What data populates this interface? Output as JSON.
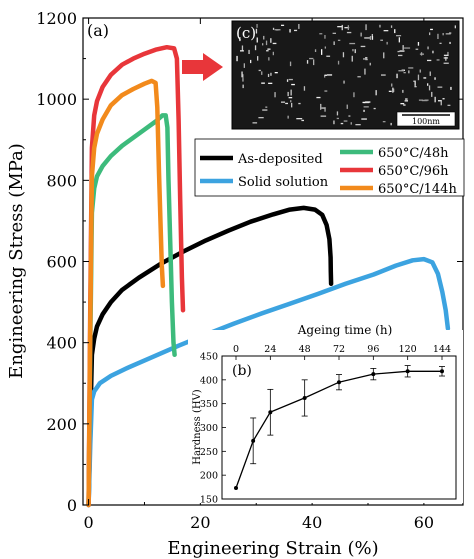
{
  "chart_data": [
    {
      "panel_label": "(a)",
      "type": "line",
      "xlabel": "Engineering Strain (%)",
      "ylabel": "Engineering Stress (MPa)",
      "xlim": [
        -1,
        67
      ],
      "ylim": [
        0,
        1200
      ],
      "xticks": [
        0,
        20,
        40,
        60
      ],
      "yticks": [
        0,
        200,
        400,
        600,
        800,
        1000,
        1200
      ],
      "grid": false,
      "legend_position": "middle-right",
      "series": [
        {
          "name": "As-deposited",
          "color": "#000000",
          "x": [
            0,
            0.3,
            0.6,
            1,
            1.5,
            2.5,
            4,
            6,
            9,
            13,
            17,
            21,
            25,
            29,
            33,
            36,
            38.5,
            40.5,
            41.8,
            42.6,
            43.1,
            43.3,
            43.35,
            43.4
          ],
          "y": [
            0,
            200,
            370,
            410,
            440,
            470,
            500,
            530,
            560,
            595,
            625,
            652,
            676,
            698,
            716,
            728,
            732,
            728,
            715,
            690,
            655,
            610,
            575,
            545
          ]
        },
        {
          "name": "Solid solution",
          "color": "#3ca3e0",
          "x": [
            0,
            0.3,
            0.6,
            1,
            2,
            4,
            7,
            11,
            16,
            21,
            26,
            31,
            36,
            41,
            46,
            51,
            55,
            58,
            60,
            61.5,
            62.5,
            63.3,
            63.9,
            64.3
          ],
          "y": [
            0,
            150,
            260,
            280,
            300,
            318,
            338,
            362,
            392,
            420,
            447,
            472,
            496,
            520,
            545,
            568,
            590,
            603,
            606,
            598,
            570,
            525,
            480,
            435
          ]
        },
        {
          "name": "650°C/48h",
          "color": "#3dbb7c",
          "x": [
            0,
            0.3,
            0.6,
            1,
            1.5,
            2.5,
            4,
            6,
            8,
            10,
            12,
            13.2,
            13.8,
            14.1,
            14.3,
            14.6,
            14.9,
            15.2,
            15.4
          ],
          "y": [
            0,
            400,
            720,
            780,
            810,
            835,
            860,
            885,
            905,
            925,
            945,
            960,
            960,
            930,
            800,
            650,
            500,
            400,
            370
          ]
        },
        {
          "name": "650°C/96h",
          "color": "#e8363a",
          "x": [
            0,
            0.3,
            0.6,
            1,
            1.5,
            2.5,
            4,
            6,
            8,
            10,
            12,
            14,
            15.3,
            15.8,
            16.1,
            16.4,
            16.7,
            16.9
          ],
          "y": [
            0,
            500,
            880,
            960,
            995,
            1030,
            1060,
            1085,
            1100,
            1112,
            1122,
            1128,
            1125,
            1100,
            950,
            750,
            560,
            480
          ]
        },
        {
          "name": "650°C/144h",
          "color": "#f28a1c",
          "x": [
            0,
            0.3,
            0.6,
            1,
            1.5,
            2.5,
            4,
            6,
            8,
            10,
            11.3,
            12,
            12.3,
            12.6,
            12.9,
            13.1,
            13.3
          ],
          "y": [
            0,
            450,
            810,
            880,
            915,
            950,
            985,
            1010,
            1025,
            1038,
            1045,
            1040,
            980,
            820,
            680,
            590,
            540
          ]
        }
      ]
    },
    {
      "panel_label": "(b)",
      "type": "line",
      "xlabel": "Ageing time (h)",
      "ylabel": "Hardness (HV)",
      "xlim": [
        0,
        144
      ],
      "ylim": [
        150,
        450
      ],
      "xticks": [
        0,
        24,
        48,
        72,
        96,
        120,
        144
      ],
      "yticks": [
        150,
        200,
        250,
        300,
        350,
        400,
        450
      ],
      "grid": false,
      "series": [
        {
          "color": "#000000",
          "x": [
            0,
            12,
            24,
            48,
            72,
            96,
            120,
            144
          ],
          "y": [
            173,
            272,
            332,
            362,
            395,
            412,
            418,
            418
          ],
          "error": [
            0,
            48,
            48,
            38,
            16,
            12,
            12,
            10
          ]
        }
      ]
    }
  ],
  "inset_c": {
    "label": "(c)",
    "scale_bar_label": "100nm"
  }
}
